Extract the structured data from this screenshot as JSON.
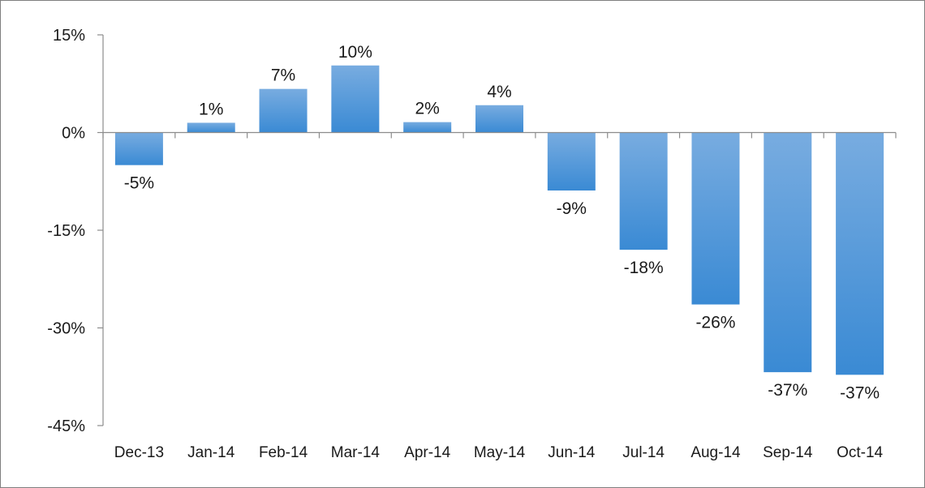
{
  "chart_data": {
    "type": "bar",
    "title": "",
    "xlabel": "",
    "ylabel": "",
    "categories": [
      "Dec-13",
      "Jan-14",
      "Feb-14",
      "Mar-14",
      "Apr-14",
      "May-14",
      "Jun-14",
      "Jul-14",
      "Aug-14",
      "Sep-14",
      "Oct-14"
    ],
    "values": [
      -5,
      1.5,
      6.7,
      10.3,
      1.6,
      4.2,
      -8.9,
      -18,
      -26.4,
      -36.8,
      -37.2
    ],
    "data_labels": [
      "-5%",
      "1%",
      "7%",
      "10%",
      "2%",
      "4%",
      "-9%",
      "-18%",
      "-26%",
      "-37%",
      "-37%"
    ],
    "ylim": [
      -45,
      15
    ],
    "yticks": [
      15,
      0,
      -15,
      -30,
      -45
    ],
    "ytick_labels": [
      "15%",
      "0%",
      "-15%",
      "-30%",
      "-45%"
    ],
    "grid": false,
    "legend": "none",
    "colors": {
      "bar_light": "#78ace0",
      "bar_dark": "#3a8ad4",
      "axis": "#8c8c8c",
      "text": "#1a1a1a",
      "frame": "#7f7f7f"
    }
  }
}
